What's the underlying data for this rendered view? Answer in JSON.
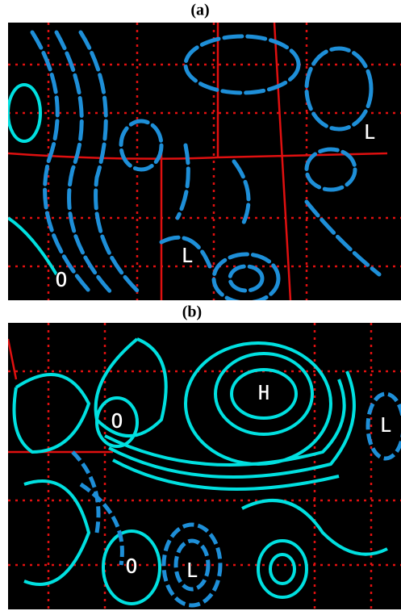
{
  "panels": [
    {
      "label": "(a)",
      "markers": [
        {
          "text": "L"
        },
        {
          "text": "L"
        },
        {
          "text": "O"
        }
      ]
    },
    {
      "label": "(b)",
      "markers": [
        {
          "text": "H"
        },
        {
          "text": "O"
        },
        {
          "text": "L"
        },
        {
          "text": "O"
        },
        {
          "text": "L"
        }
      ]
    }
  ]
}
